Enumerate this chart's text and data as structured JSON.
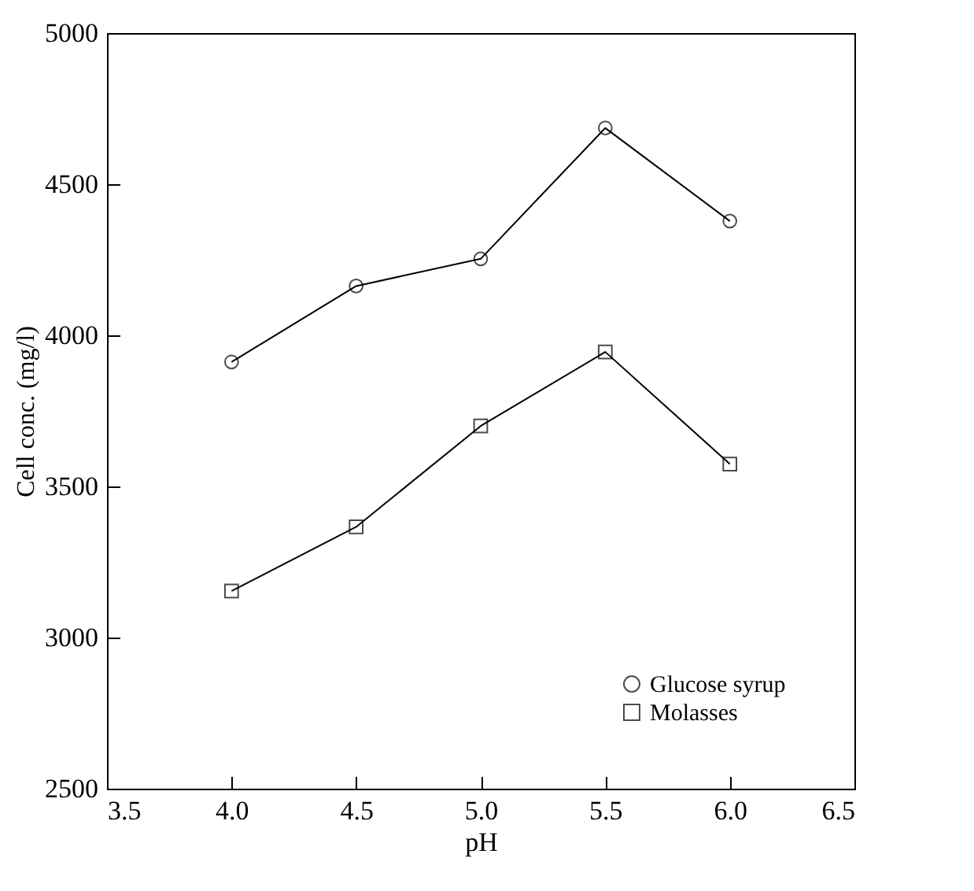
{
  "chart_data": {
    "type": "line",
    "xlabel": "pH",
    "ylabel": "Cell conc. (mg/l)",
    "x": [
      4.0,
      4.5,
      5.0,
      5.5,
      6.0
    ],
    "series": [
      {
        "name": "Glucose  syrup",
        "color": "#000000",
        "marker": "circle",
        "values": [
          3912,
          4163,
          4253,
          4686,
          4378
        ]
      },
      {
        "name": "Molasses",
        "color": "#000000",
        "marker": "square",
        "values": [
          3154,
          3366,
          3700,
          3945,
          3574
        ]
      }
    ],
    "xlim": [
      3.5,
      6.5
    ],
    "xticks": [
      {
        "value": 3.5,
        "label": "3.5"
      },
      {
        "value": 4.0,
        "label": "4.0"
      },
      {
        "value": 4.5,
        "label": "4.5"
      },
      {
        "value": 5.0,
        "label": "5.0"
      },
      {
        "value": 5.5,
        "label": "5.5"
      },
      {
        "value": 6.0,
        "label": "6.0"
      },
      {
        "value": 6.5,
        "label": "6.5"
      }
    ],
    "ylim": [
      2500,
      5000
    ],
    "yticks": [
      2500,
      3000,
      3500,
      4000,
      4500,
      5000
    ],
    "grid": false,
    "legend": "bottom right",
    "line_style": "solid"
  }
}
